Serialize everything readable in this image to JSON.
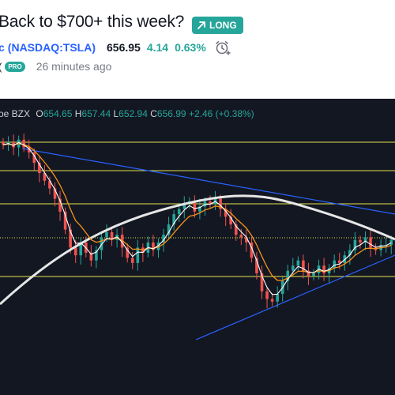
{
  "idea": {
    "title": "Back to $700+ this week?",
    "direction_badge": "LONG",
    "direction_icon": "arrow-up-right-icon"
  },
  "symbol": {
    "name_fragment": "c",
    "ticker": "(NASDAQ:TSLA)",
    "price": "656.95",
    "change": "4.14",
    "change_percent": "0.63%",
    "alert_icon": "alarm-clock-plus-icon"
  },
  "author": {
    "name_fragment": "(",
    "badge": "PRO",
    "posted": "26 minutes ago"
  },
  "ohlc": {
    "source_fragment": "oe BZX",
    "open_label": "O",
    "open": "654.65",
    "high_label": "H",
    "high": "657.44",
    "low_label": "L",
    "low": "652.94",
    "close_label": "C",
    "close": "656.99",
    "change": "+2.46 (+0.38%)"
  },
  "colors": {
    "up": "#26a69a",
    "down": "#ef5350",
    "chart_bg": "#131722",
    "trendline": "#2962ff",
    "horizontal_level": "#e5e54c",
    "ema_fast": "#ffffff",
    "ema_slow": "#f7931a",
    "long_ma": "#e6e6e6"
  },
  "chart_data": {
    "type": "candlestick",
    "symbol": "TSLA",
    "overlays": [
      "horizontal support/resistance levels",
      "descending trendline",
      "ascending trendline",
      "fast moving average",
      "slow moving average",
      "long moving average"
    ],
    "grid": false,
    "closes": [
      700,
      701,
      699,
      702,
      699,
      697,
      693,
      689,
      686,
      683,
      679,
      674,
      667,
      660,
      657,
      662,
      658,
      655,
      659,
      664,
      666,
      663,
      665,
      660,
      656,
      654,
      660,
      658,
      662,
      659,
      662,
      665,
      669,
      673,
      675,
      677,
      678,
      674,
      676,
      678,
      677,
      679,
      675,
      672,
      669,
      665,
      664,
      662,
      656,
      650,
      643,
      640,
      639,
      642,
      647,
      651,
      653,
      655,
      651,
      649,
      650,
      653,
      650,
      652,
      655,
      654,
      657,
      659,
      663,
      662,
      664,
      660,
      659,
      661,
      661,
      663
    ]
  }
}
